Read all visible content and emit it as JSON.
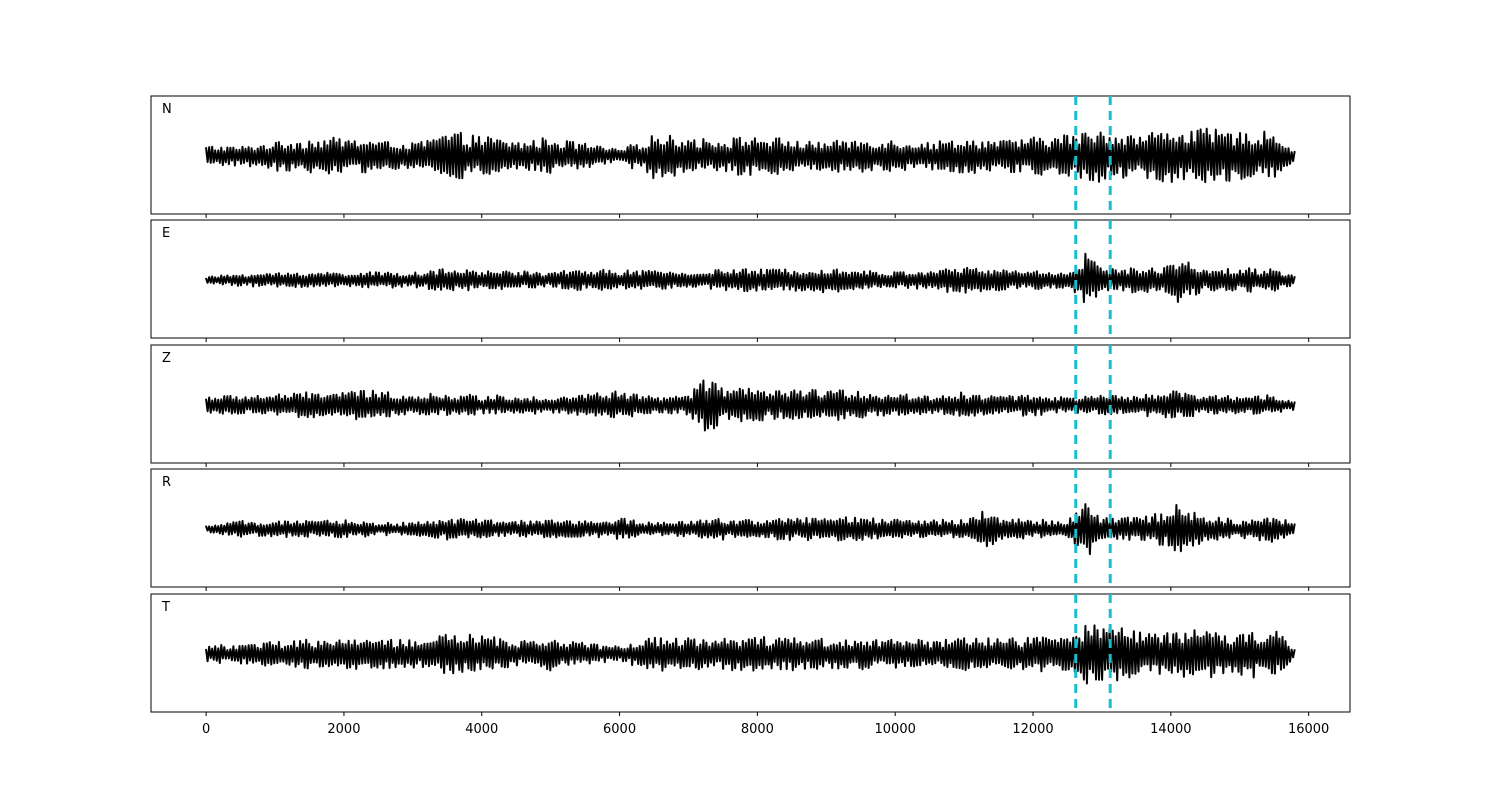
{
  "chart_data": {
    "type": "line",
    "layout": "5 stacked panels sharing x axis",
    "xlim": [
      -800,
      16600
    ],
    "x_ticks": [
      0,
      2000,
      4000,
      6000,
      8000,
      10000,
      12000,
      14000,
      16000
    ],
    "x_tick_labels": [
      "0",
      "2000",
      "4000",
      "6000",
      "8000",
      "10000",
      "12000",
      "14000",
      "16000"
    ],
    "x_range_of_traces": [
      0,
      15800
    ],
    "y_ticks_shown": false,
    "grid": false,
    "trace_color": "#000000",
    "vertical_markers": {
      "x": [
        12620,
        13120
      ],
      "style": "dashed",
      "color": "#17becf"
    },
    "panels": [
      {
        "label": "N",
        "description": "noise-like oscillation, amplitude roughly uniform with bursts near 3600, 6300 and 13000-15500",
        "series": [
          {
            "x": [
              0,
              500,
              1000,
              1500,
              2000,
              2500,
              3000,
              3500,
              4000,
              4500,
              5000,
              5500,
              6000,
              6500,
              7000,
              7500,
              8000,
              8500,
              9000,
              9500,
              10000,
              10500,
              11000,
              11500,
              12000,
              12500,
              13000,
              13500,
              14000,
              14500,
              15000,
              15500,
              15800
            ],
            "envelope": [
              0.35,
              0.3,
              0.45,
              0.55,
              0.6,
              0.5,
              0.4,
              0.75,
              0.65,
              0.45,
              0.6,
              0.4,
              0.2,
              0.7,
              0.6,
              0.55,
              0.65,
              0.5,
              0.45,
              0.55,
              0.5,
              0.45,
              0.55,
              0.5,
              0.6,
              0.7,
              0.85,
              0.7,
              0.9,
              0.85,
              0.75,
              0.8,
              0.15
            ]
          }
        ]
      },
      {
        "label": "E",
        "description": "lower-amplitude noise with a large pulse near 12800-12900 and a secondary pulse near 14100",
        "series": [
          {
            "x": [
              0,
              500,
              1000,
              1500,
              2000,
              2500,
              3000,
              3500,
              4000,
              4500,
              5000,
              5500,
              6000,
              6500,
              7000,
              7500,
              8000,
              8500,
              9000,
              9500,
              10000,
              10500,
              11000,
              11500,
              12000,
              12500,
              12800,
              13000,
              13500,
              14000,
              14100,
              14500,
              15000,
              15500,
              15800
            ],
            "envelope": [
              0.1,
              0.2,
              0.22,
              0.25,
              0.25,
              0.25,
              0.25,
              0.35,
              0.3,
              0.3,
              0.25,
              0.35,
              0.3,
              0.3,
              0.25,
              0.35,
              0.35,
              0.35,
              0.4,
              0.3,
              0.25,
              0.35,
              0.4,
              0.35,
              0.3,
              0.25,
              0.95,
              0.35,
              0.4,
              0.45,
              0.8,
              0.35,
              0.4,
              0.35,
              0.15
            ]
          }
        ]
      },
      {
        "label": "Z",
        "description": "noise with strongest burst near 7200-7300 and a large trough near 14100",
        "series": [
          {
            "x": [
              0,
              500,
              1000,
              1500,
              2000,
              2500,
              3000,
              3500,
              4000,
              4500,
              5000,
              5500,
              6000,
              6500,
              7000,
              7200,
              7500,
              8000,
              8500,
              9000,
              9500,
              10000,
              10500,
              11000,
              11500,
              12000,
              12500,
              13000,
              13500,
              14000,
              14500,
              15000,
              15500,
              15800
            ],
            "envelope": [
              0.3,
              0.3,
              0.35,
              0.4,
              0.45,
              0.45,
              0.35,
              0.35,
              0.3,
              0.3,
              0.25,
              0.35,
              0.45,
              0.25,
              0.3,
              0.95,
              0.55,
              0.5,
              0.45,
              0.5,
              0.45,
              0.35,
              0.3,
              0.4,
              0.3,
              0.35,
              0.25,
              0.3,
              0.3,
              0.45,
              0.3,
              0.3,
              0.35,
              0.15
            ]
          }
        ]
      },
      {
        "label": "R",
        "description": "low noise with burst near 11300, large pulse near 12800-12850 and pulses near 14100",
        "series": [
          {
            "x": [
              0,
              500,
              1000,
              1500,
              2000,
              2500,
              3000,
              3500,
              4000,
              4500,
              5000,
              5500,
              6000,
              6500,
              7000,
              7500,
              8000,
              8500,
              9000,
              9500,
              10000,
              10500,
              11000,
              11300,
              11500,
              12000,
              12500,
              12800,
              13000,
              13500,
              14000,
              14100,
              14500,
              15000,
              15500,
              15800
            ],
            "envelope": [
              0.1,
              0.25,
              0.25,
              0.25,
              0.3,
              0.2,
              0.2,
              0.35,
              0.3,
              0.25,
              0.3,
              0.25,
              0.35,
              0.2,
              0.25,
              0.35,
              0.3,
              0.35,
              0.4,
              0.35,
              0.3,
              0.3,
              0.3,
              0.7,
              0.35,
              0.3,
              0.25,
              0.95,
              0.35,
              0.4,
              0.6,
              0.85,
              0.4,
              0.3,
              0.45,
              0.15
            ]
          }
        ]
      },
      {
        "label": "T",
        "description": "noise similar to N with large pulses near 12800 and 13250 and high amplitude 13500-15600",
        "series": [
          {
            "x": [
              0,
              500,
              1000,
              1500,
              2000,
              2500,
              3000,
              3500,
              4000,
              4500,
              5000,
              5500,
              6000,
              6500,
              7000,
              7500,
              8000,
              8500,
              9000,
              9500,
              10000,
              10500,
              11000,
              11500,
              12000,
              12500,
              12800,
              13250,
              13500,
              14000,
              14500,
              15000,
              15500,
              15800
            ],
            "envelope": [
              0.3,
              0.3,
              0.4,
              0.45,
              0.5,
              0.45,
              0.45,
              0.65,
              0.6,
              0.4,
              0.55,
              0.35,
              0.25,
              0.55,
              0.55,
              0.5,
              0.6,
              0.55,
              0.5,
              0.5,
              0.5,
              0.45,
              0.5,
              0.5,
              0.55,
              0.6,
              0.95,
              0.9,
              0.7,
              0.8,
              0.75,
              0.7,
              0.8,
              0.15
            ]
          }
        ]
      }
    ]
  }
}
